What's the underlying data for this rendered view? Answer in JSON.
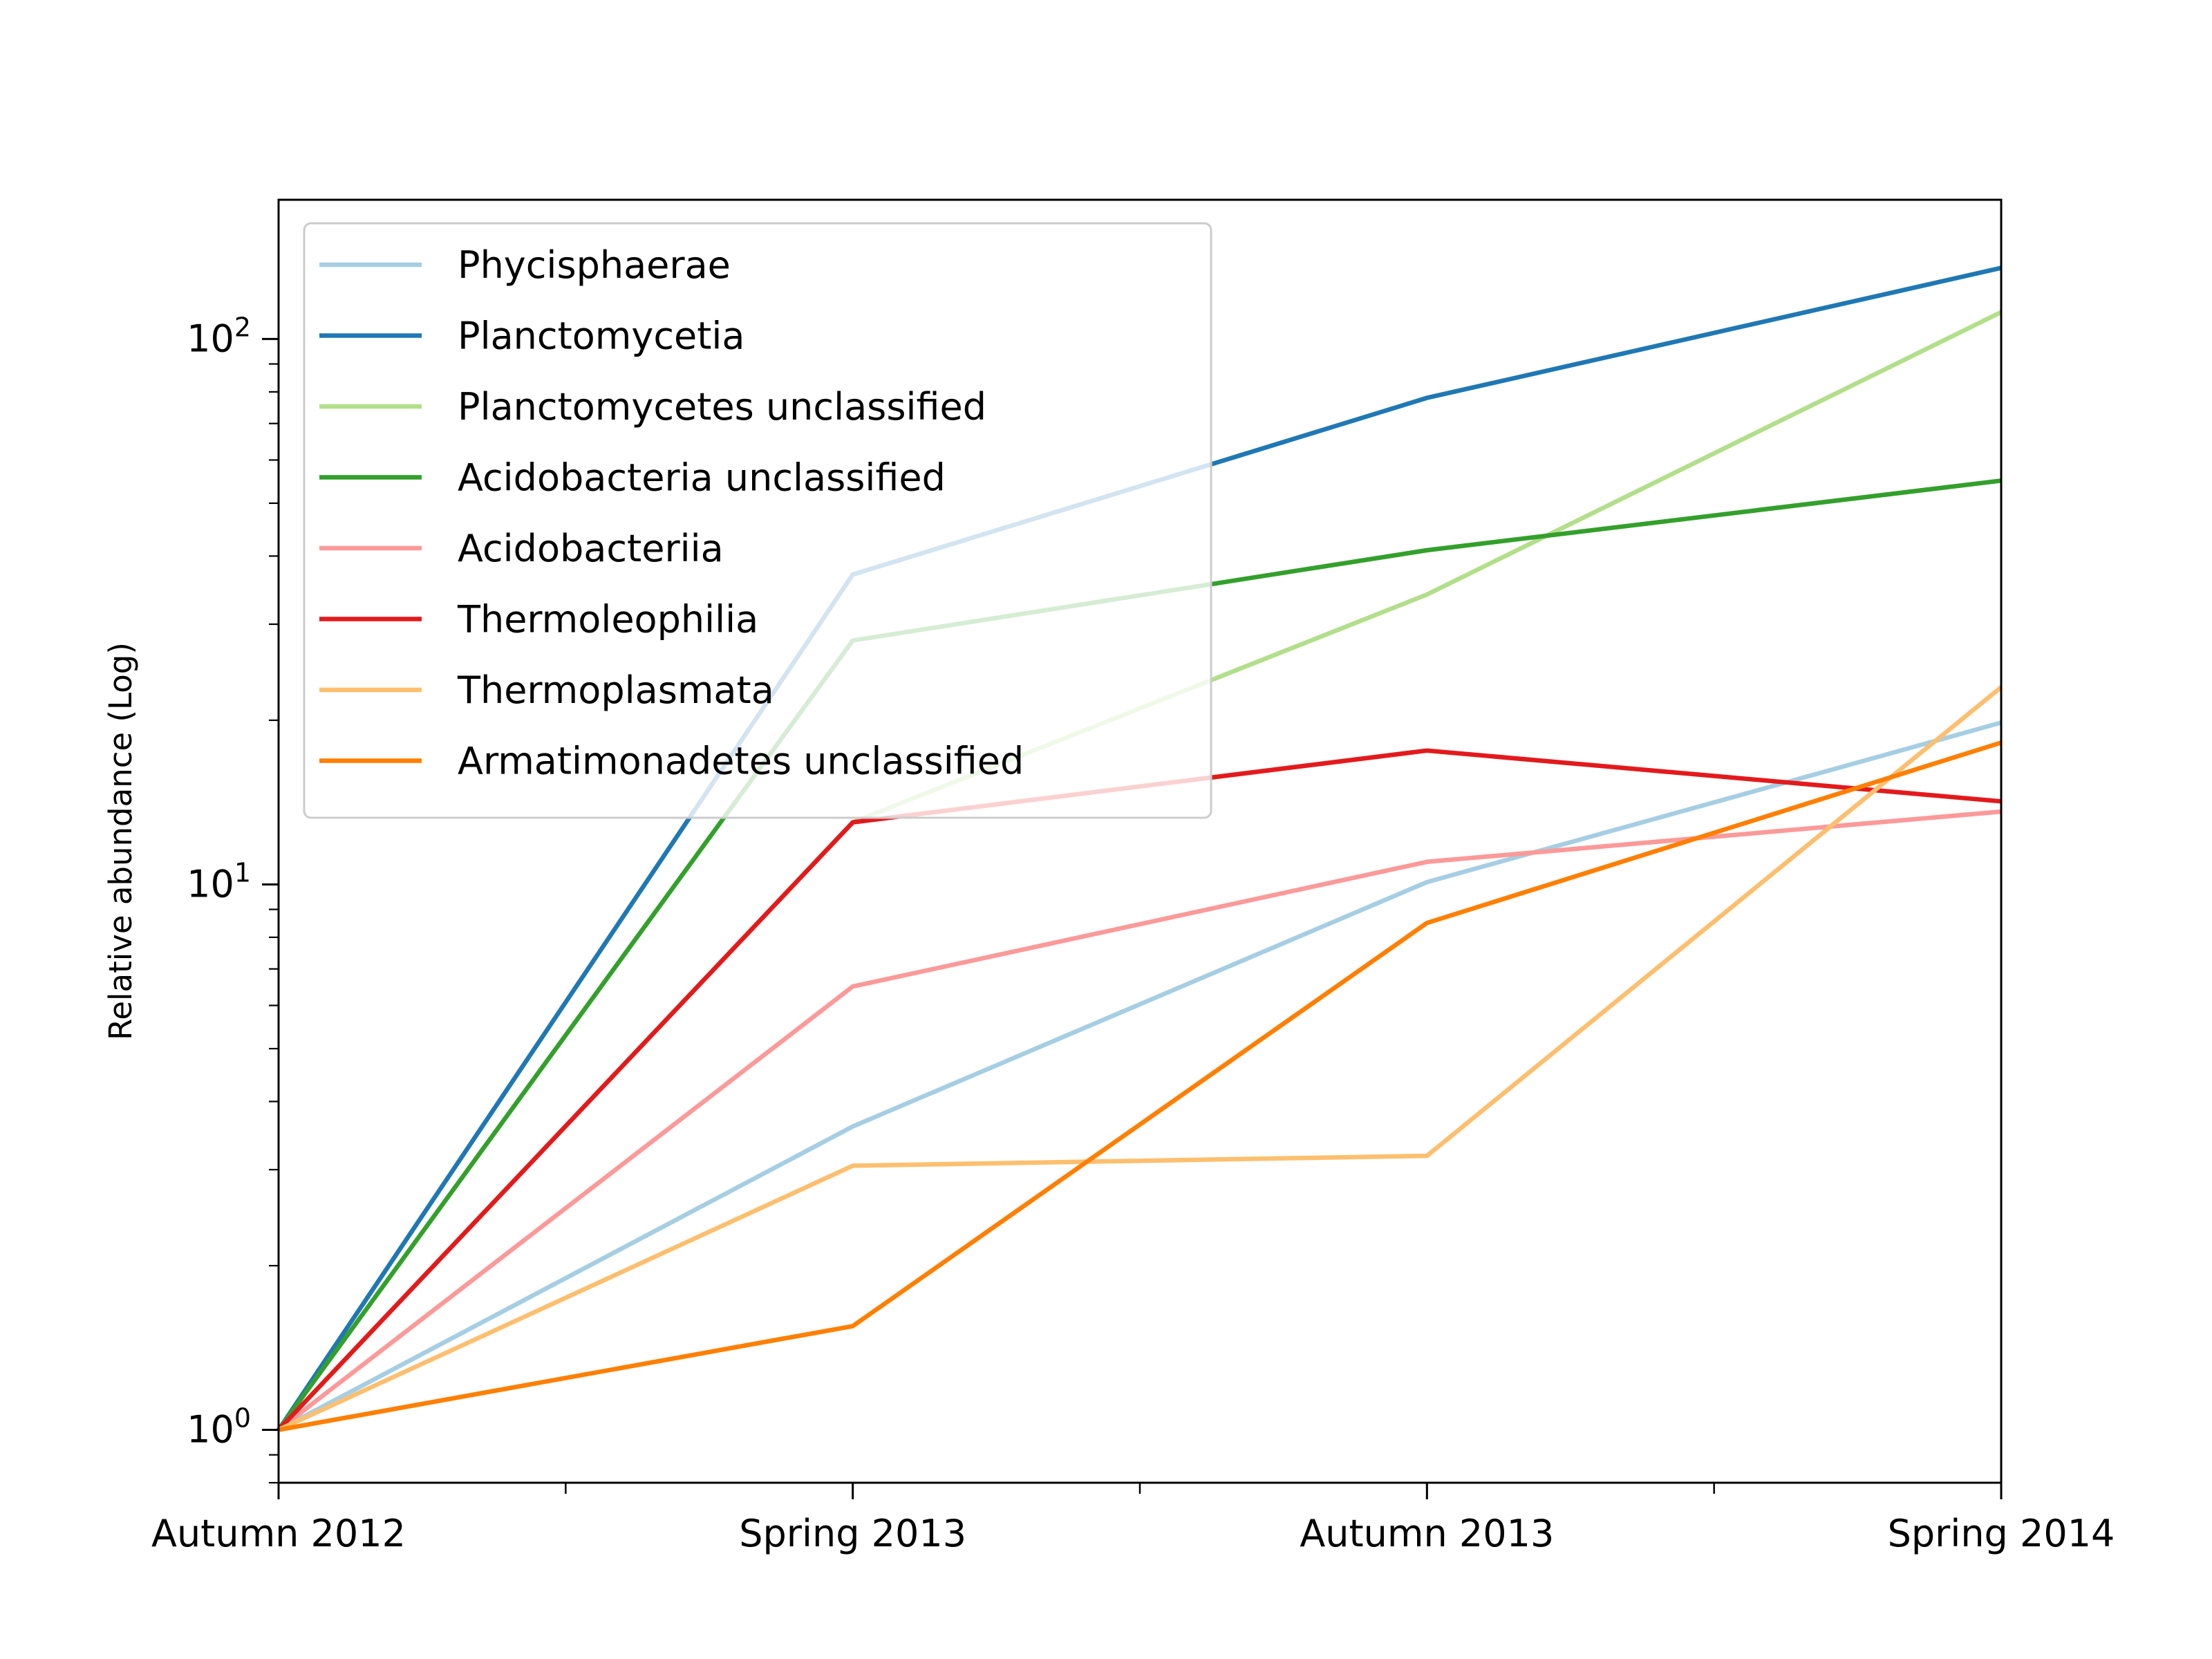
{
  "chart_data": {
    "type": "line",
    "title": "",
    "xlabel": "",
    "ylabel": "Relative abundance (Log)",
    "yscale": "log",
    "ylim": [
      0.8,
      180
    ],
    "categories": [
      "Autumn 2012",
      "Spring 2013",
      "Autumn 2013",
      "Spring 2014"
    ],
    "y_ticks": [
      {
        "base": "10",
        "exp": "0",
        "value": 1
      },
      {
        "base": "10",
        "exp": "1",
        "value": 10
      },
      {
        "base": "10",
        "exp": "2",
        "value": 100
      }
    ],
    "legend_position": "upper-left",
    "grid": false,
    "series": [
      {
        "name": "Phycisphaerae",
        "color": "#a6cee3",
        "values": [
          1,
          3.6,
          10.1,
          19.8
        ]
      },
      {
        "name": "Planctomycetia",
        "color": "#1f78b4",
        "values": [
          1,
          37,
          78,
          135
        ]
      },
      {
        "name": "Planctomycetes unclassified",
        "color": "#b2df8a",
        "values": [
          1,
          13,
          34,
          112
        ]
      },
      {
        "name": "Acidobacteria unclassified",
        "color": "#33a02c",
        "values": [
          1,
          28,
          41,
          55
        ]
      },
      {
        "name": "Acidobacteriia",
        "color": "#fb9a99",
        "values": [
          1,
          6.5,
          11,
          13.6
        ]
      },
      {
        "name": "Thermoleophilia",
        "color": "#e31a1c",
        "values": [
          1,
          13,
          17.6,
          14.2
        ]
      },
      {
        "name": "Thermoplasmata",
        "color": "#fdbf6f",
        "values": [
          1,
          3.05,
          3.18,
          23
        ]
      },
      {
        "name": "Armatimonadetes unclassified",
        "color": "#ff7f00",
        "values": [
          1,
          1.55,
          8.5,
          18.2
        ]
      }
    ]
  }
}
